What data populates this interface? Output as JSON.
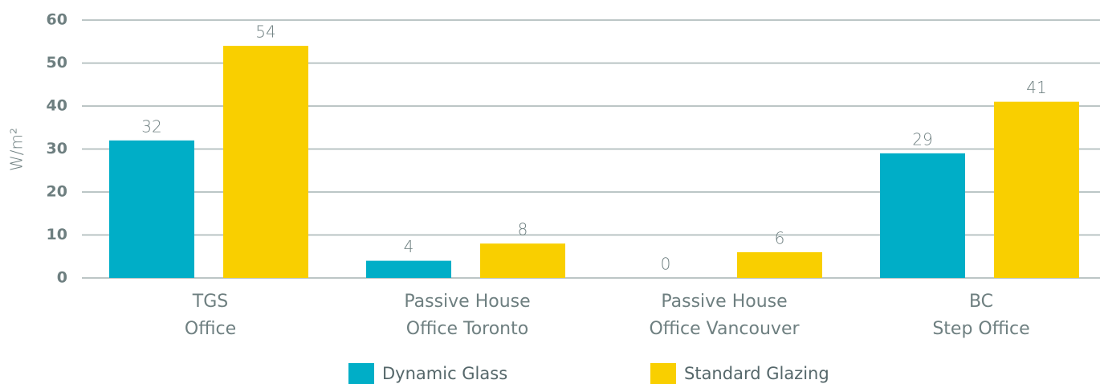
{
  "chart_data": {
    "type": "bar",
    "y_label": "W/m²",
    "categories": [
      [
        "TGS",
        "Office"
      ],
      [
        "Passive House",
        "Office Toronto"
      ],
      [
        "Passive House",
        "Office Vancouver"
      ],
      [
        "BC",
        "Step Office"
      ]
    ],
    "series": [
      {
        "name": "Dynamic Glass",
        "color": "#00aec7",
        "values": [
          32,
          4,
          0,
          29
        ]
      },
      {
        "name": "Standard Glazing",
        "color": "#f9cf00",
        "values": [
          54,
          8,
          6,
          41
        ]
      }
    ],
    "ylim": [
      0,
      60
    ],
    "yticks": [
      0,
      10,
      20,
      30,
      40,
      50,
      60
    ],
    "grid": true,
    "legend": "bottom"
  }
}
